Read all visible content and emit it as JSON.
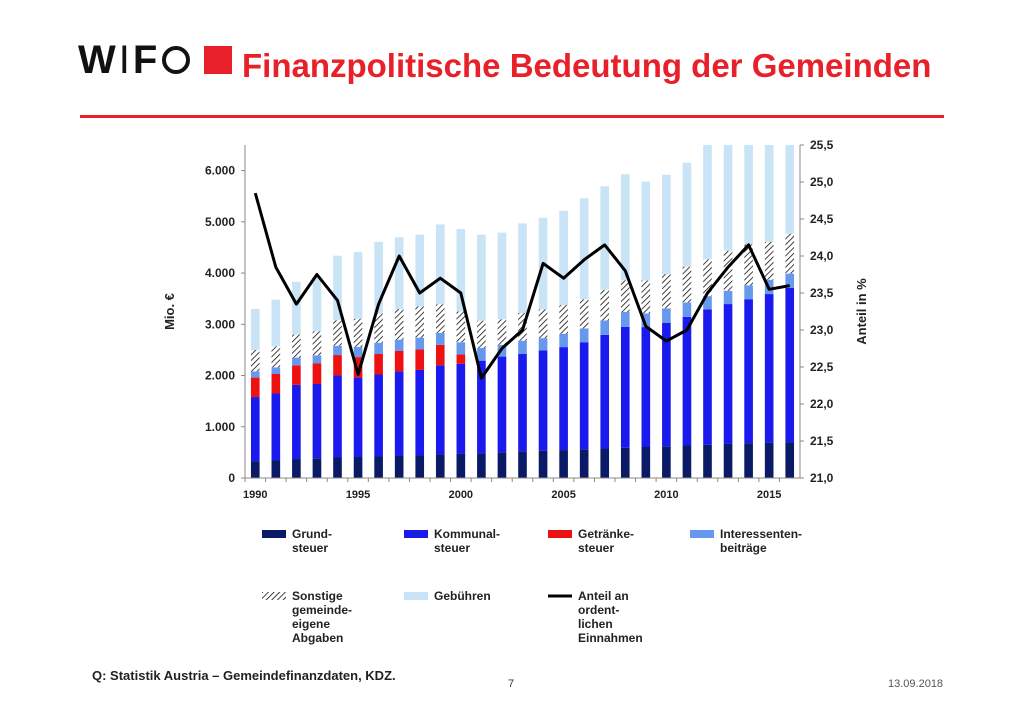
{
  "header": {
    "logo_text_1": "W",
    "logo_divider": "I",
    "logo_text_2": "F",
    "title": "Finanzpolitische Bedeutung der Gemeinden"
  },
  "footer": {
    "source": "Q: Statistik Austria – Gemeindefinanzdaten, KDZ.",
    "page_number": "7",
    "date": "13.09.2018"
  },
  "colors": {
    "brand_red": "#e8202a",
    "grundsteuer": "#0a1a66",
    "kommunalsteuer": "#1a1aee",
    "getraenkesteuer": "#ee1111",
    "interessentenbeitraege": "#6699ee",
    "gebuehren": "#c8e4f6",
    "anteil": "#000000"
  },
  "chart_data": {
    "type": "bar",
    "stacked": true,
    "x": [
      1990,
      1991,
      1992,
      1993,
      1994,
      1995,
      1996,
      1997,
      1998,
      1999,
      2000,
      2001,
      2002,
      2003,
      2004,
      2005,
      2006,
      2007,
      2008,
      2009,
      2010,
      2011,
      2012,
      2013,
      2014,
      2015,
      2016
    ],
    "x_ticks": [
      "1990",
      "1995",
      "2000",
      "2005",
      "2010",
      "2015"
    ],
    "ylabel": "Mio. €",
    "ylim": [
      0,
      6500
    ],
    "y_ticks": [
      "0",
      "1.000",
      "2.000",
      "3.000",
      "4.000",
      "5.000",
      "6.000"
    ],
    "y2label": "Anteil in %",
    "y2lim": [
      21.0,
      25.5
    ],
    "y2_ticks": [
      "21,0",
      "21,5",
      "22,0",
      "22,5",
      "23,0",
      "23,5",
      "24,0",
      "24,5",
      "25,0",
      "25,5"
    ],
    "series": [
      {
        "name": "Grund-\nsteuer",
        "legend_lines": [
          "Grund-",
          "steuer"
        ],
        "kind": "bar",
        "color": "#0a1a66",
        "values": [
          330,
          350,
          370,
          385,
          400,
          410,
          420,
          430,
          440,
          460,
          470,
          480,
          500,
          520,
          530,
          545,
          560,
          575,
          590,
          605,
          620,
          635,
          650,
          665,
          680,
          690,
          700
        ]
      },
      {
        "name": "Kommunal-\nsteuer",
        "legend_lines": [
          "Kommunal-",
          "steuer"
        ],
        "kind": "bar",
        "color": "#1a1aee",
        "values": [
          1250,
          1300,
          1450,
          1450,
          1600,
          1550,
          1600,
          1650,
          1670,
          1740,
          1760,
          1810,
          1870,
          1900,
          1960,
          2010,
          2090,
          2220,
          2360,
          2340,
          2410,
          2510,
          2640,
          2730,
          2810,
          2900,
          3010
        ]
      },
      {
        "name": "Getränke-\nsteuer",
        "legend_lines": [
          "Getränke-",
          "steuer"
        ],
        "kind": "bar",
        "color": "#ee1111",
        "values": [
          380,
          380,
          380,
          400,
          400,
          400,
          400,
          400,
          400,
          400,
          180,
          0,
          0,
          0,
          0,
          0,
          0,
          0,
          0,
          0,
          0,
          0,
          0,
          0,
          0,
          0,
          0
        ]
      },
      {
        "name": "Interessenten-\nbeiträge",
        "legend_lines": [
          "Interessenten-",
          "beiträge"
        ],
        "kind": "bar",
        "color": "#6699ee",
        "values": [
          120,
          130,
          150,
          160,
          180,
          200,
          220,
          220,
          230,
          230,
          240,
          250,
          230,
          260,
          240,
          260,
          270,
          280,
          290,
          270,
          280,
          280,
          260,
          260,
          270,
          280,
          280
        ]
      },
      {
        "name": "Sonstige\ngemeinde-\neigene\nAbgaben",
        "legend_lines": [
          "Sonstige",
          "gemeinde-",
          "eigene",
          " Abgaben"
        ],
        "kind": "bar",
        "pattern": "hatch",
        "values": [
          420,
          410,
          450,
          470,
          500,
          550,
          570,
          600,
          610,
          560,
          600,
          530,
          500,
          540,
          560,
          560,
          570,
          600,
          620,
          640,
          670,
          700,
          720,
          780,
          800,
          740,
          780
        ]
      },
      {
        "name": "Gebühren",
        "legend_lines": [
          "Gebühren"
        ],
        "kind": "bar",
        "color": "#c8e4f6",
        "values": [
          800,
          910,
          1030,
          1060,
          1260,
          1300,
          1400,
          1400,
          1400,
          1560,
          1610,
          1680,
          1690,
          1750,
          1790,
          1840,
          1970,
          2020,
          2070,
          1930,
          1940,
          2030,
          2230,
          2065,
          1940,
          1890,
          1730
        ]
      },
      {
        "name": "Anteil an\nordent-\nlichen\nEinnahmen",
        "legend_lines": [
          "Anteil an",
          "ordent-",
          "lichen",
          "Einnahmen"
        ],
        "kind": "line",
        "axis": "right",
        "color": "#000000",
        "values": [
          24.85,
          23.85,
          23.35,
          23.75,
          23.4,
          22.4,
          23.35,
          24.0,
          23.5,
          23.7,
          23.5,
          22.35,
          22.75,
          23.0,
          23.9,
          23.7,
          23.95,
          24.15,
          23.8,
          23.05,
          22.85,
          23.0,
          23.5,
          23.85,
          24.15,
          23.55,
          23.6
        ]
      }
    ]
  }
}
